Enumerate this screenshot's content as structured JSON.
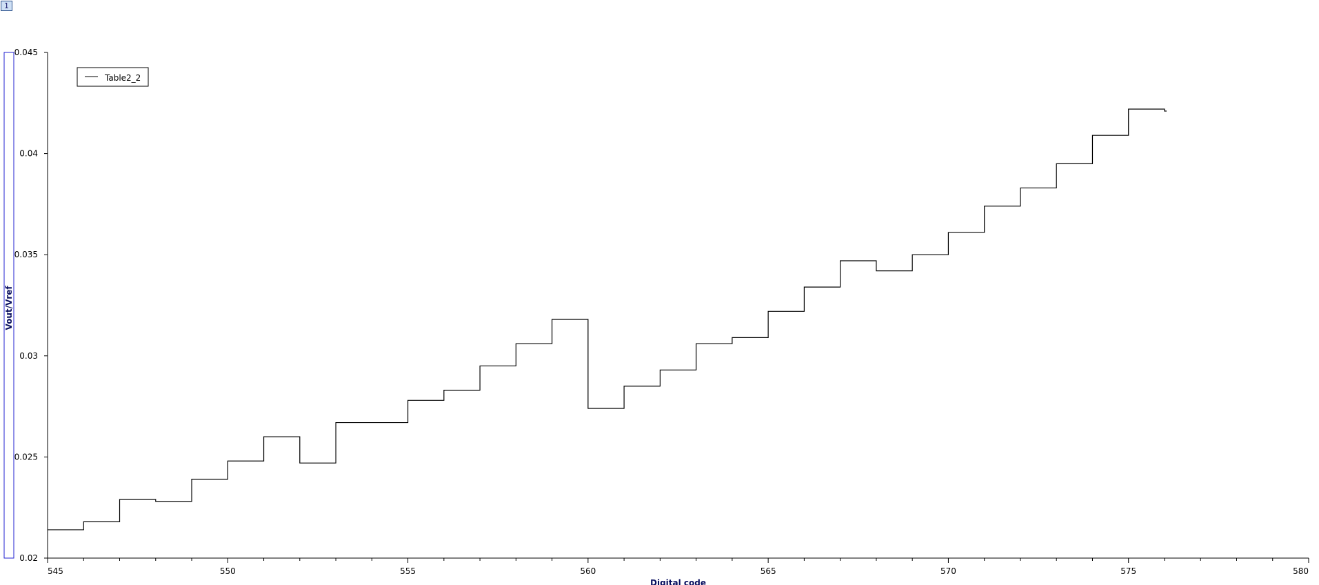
{
  "layer_badge": "1",
  "chart_data": {
    "type": "line",
    "step": true,
    "xlabel": "Digital code",
    "ylabel": "Vout/Vref",
    "xlim": [
      545,
      580
    ],
    "ylim": [
      0.02,
      0.045
    ],
    "x_ticks": [
      545,
      550,
      555,
      560,
      565,
      570,
      575,
      580
    ],
    "y_ticks": [
      0.02,
      0.025,
      0.03,
      0.035,
      0.04,
      0.045
    ],
    "y_tick_labels": [
      "0.02",
      "0.025",
      "0.03",
      "0.035",
      "0.04",
      "0.045"
    ],
    "x_minor_step": 1,
    "grid": false,
    "legend": {
      "position": "top-left",
      "entries": [
        "Table2_2"
      ]
    },
    "series": [
      {
        "name": "Table2_2",
        "color": "#000000",
        "x": [
          545,
          546,
          547,
          548,
          549,
          550,
          551,
          552,
          553,
          554,
          555,
          556,
          557,
          558,
          559,
          560,
          561,
          562,
          563,
          564,
          565,
          566,
          567,
          568,
          569,
          570,
          571,
          572,
          573,
          574,
          575,
          576
        ],
        "y": [
          0.0214,
          0.0218,
          0.0229,
          0.0228,
          0.0239,
          0.0248,
          0.026,
          0.0247,
          0.0267,
          0.0267,
          0.0278,
          0.0283,
          0.0295,
          0.0306,
          0.0318,
          0.0274,
          0.0285,
          0.0293,
          0.0306,
          0.0309,
          0.0322,
          0.0334,
          0.0347,
          0.0342,
          0.035,
          0.0361,
          0.0374,
          0.0383,
          0.0395,
          0.0409,
          0.0422,
          0.0421
        ]
      }
    ]
  }
}
